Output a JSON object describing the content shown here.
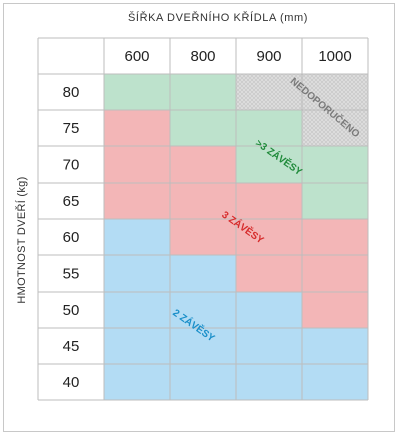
{
  "title": "ŠÍŘKA DVEŘNÍHO KŘÍDLA (mm)",
  "ylabel": "HMOTNOST DVEŘÍ (kg)",
  "columns": [
    "600",
    "800",
    "900",
    "1000"
  ],
  "rows": [
    "80",
    "75",
    "70",
    "65",
    "60",
    "55",
    "50",
    "45",
    "40"
  ],
  "zones": {
    "two": "2 ZÁVĚSY",
    "three": "3 ZÁVĚSY",
    "more": ">3 ZÁVĚSY",
    "na": "NEDOPORUČENO"
  },
  "colors": {
    "two": "#b3dcf4",
    "three": "#f3b6b7",
    "more": "#bde2cc",
    "na": "#dcdcdc",
    "two_text": "#1a8fc9",
    "three_text": "#d62c2c",
    "more_text": "#1f8a3a",
    "na_text": "#7a7a7a"
  },
  "matrix": [
    [
      "more",
      "more",
      "na",
      "na"
    ],
    [
      "three",
      "more",
      "more",
      "na"
    ],
    [
      "three",
      "three",
      "more",
      "more"
    ],
    [
      "three",
      "three",
      "three",
      "more"
    ],
    [
      "two",
      "three",
      "three",
      "three"
    ],
    [
      "two",
      "two",
      "three",
      "three"
    ],
    [
      "two",
      "two",
      "two",
      "three"
    ],
    [
      "two",
      "two",
      "two",
      "two"
    ],
    [
      "two",
      "two",
      "two",
      "two"
    ]
  ]
}
